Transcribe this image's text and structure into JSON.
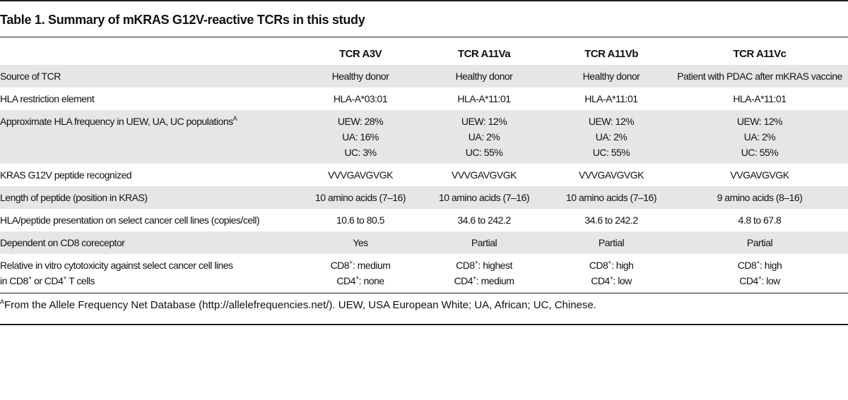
{
  "title": "Table 1. Summary of mKRAS G12V-reactive TCRs in this study",
  "table": {
    "columns": [
      "TCR A3V",
      "TCR A11Va",
      "TCR A11Vb",
      "TCR A11Vc"
    ],
    "rows": [
      {
        "label": [
          "Source of TCR"
        ],
        "cells": [
          [
            "Healthy donor"
          ],
          [
            "Healthy donor"
          ],
          [
            "Healthy donor"
          ],
          [
            "Patient with PDAC after mKRAS vaccine"
          ]
        ]
      },
      {
        "label": [
          "HLA restriction element"
        ],
        "cells": [
          [
            "HLA-A*03:01"
          ],
          [
            "HLA-A*11:01"
          ],
          [
            "HLA-A*11:01"
          ],
          [
            "HLA-A*11:01"
          ]
        ]
      },
      {
        "label": [
          [
            {
              "text": "Approximate HLA frequency in UEW, UA, UC populations"
            },
            {
              "sup": "A"
            }
          ]
        ],
        "cells": [
          [
            "UEW: 28%",
            "UA: 16%",
            "UC: 3%"
          ],
          [
            "UEW: 12%",
            "UA: 2%",
            "UC: 55%"
          ],
          [
            "UEW: 12%",
            "UA: 2%",
            "UC: 55%"
          ],
          [
            "UEW: 12%",
            "UA: 2%",
            "UC: 55%"
          ]
        ]
      },
      {
        "label": [
          "KRAS G12V peptide recognized"
        ],
        "cells": [
          [
            "VVVGAVGVGK"
          ],
          [
            "VVVGAVGVGK"
          ],
          [
            "VVVGAVGVGK"
          ],
          [
            "VVGAVGVGK"
          ]
        ]
      },
      {
        "label": [
          "Length of peptide (position in KRAS)"
        ],
        "cells": [
          [
            "10 amino acids (7–16)"
          ],
          [
            "10 amino acids (7–16)"
          ],
          [
            "10 amino acids (7–16)"
          ],
          [
            "9 amino acids (8–16)"
          ]
        ]
      },
      {
        "label": [
          "HLA/peptide presentation on select cancer cell lines (copies/cell)"
        ],
        "cells": [
          [
            "10.6 to 80.5"
          ],
          [
            "34.6 to 242.2"
          ],
          [
            "34.6 to 242.2"
          ],
          [
            "4.8 to 67.8"
          ]
        ]
      },
      {
        "label": [
          "Dependent on CD8 coreceptor"
        ],
        "cells": [
          [
            "Yes"
          ],
          [
            "Partial"
          ],
          [
            "Partial"
          ],
          [
            "Partial"
          ]
        ]
      },
      {
        "label": [
          "Relative in vitro cytotoxicity against select cancer cell lines",
          [
            {
              "text": "in CD8"
            },
            {
              "sup": "+"
            },
            {
              "text": " or CD4"
            },
            {
              "sup": "+"
            },
            {
              "text": " T cells"
            }
          ]
        ],
        "cells": [
          [
            [
              {
                "text": "CD8"
              },
              {
                "sup": "+"
              },
              {
                "text": ": medium"
              }
            ],
            [
              {
                "text": "CD4"
              },
              {
                "sup": "+"
              },
              {
                "text": ": none"
              }
            ]
          ],
          [
            [
              {
                "text": "CD8"
              },
              {
                "sup": "+"
              },
              {
                "text": ": highest"
              }
            ],
            [
              {
                "text": "CD4"
              },
              {
                "sup": "+"
              },
              {
                "text": ": medium"
              }
            ]
          ],
          [
            [
              {
                "text": "CD8"
              },
              {
                "sup": "+"
              },
              {
                "text": ": high"
              }
            ],
            [
              {
                "text": "CD4"
              },
              {
                "sup": "+"
              },
              {
                "text": ": low"
              }
            ]
          ],
          [
            [
              {
                "text": "CD8"
              },
              {
                "sup": "+"
              },
              {
                "text": ": high"
              }
            ],
            [
              {
                "text": "CD4"
              },
              {
                "sup": "+"
              },
              {
                "text": ": low"
              }
            ]
          ]
        ]
      }
    ]
  },
  "footnote": {
    "marker": "A",
    "text": "From the Allele Frequency Net Database (http://allelefrequencies.net/). UEW, USA European White; UA, African; UC, Chinese."
  }
}
